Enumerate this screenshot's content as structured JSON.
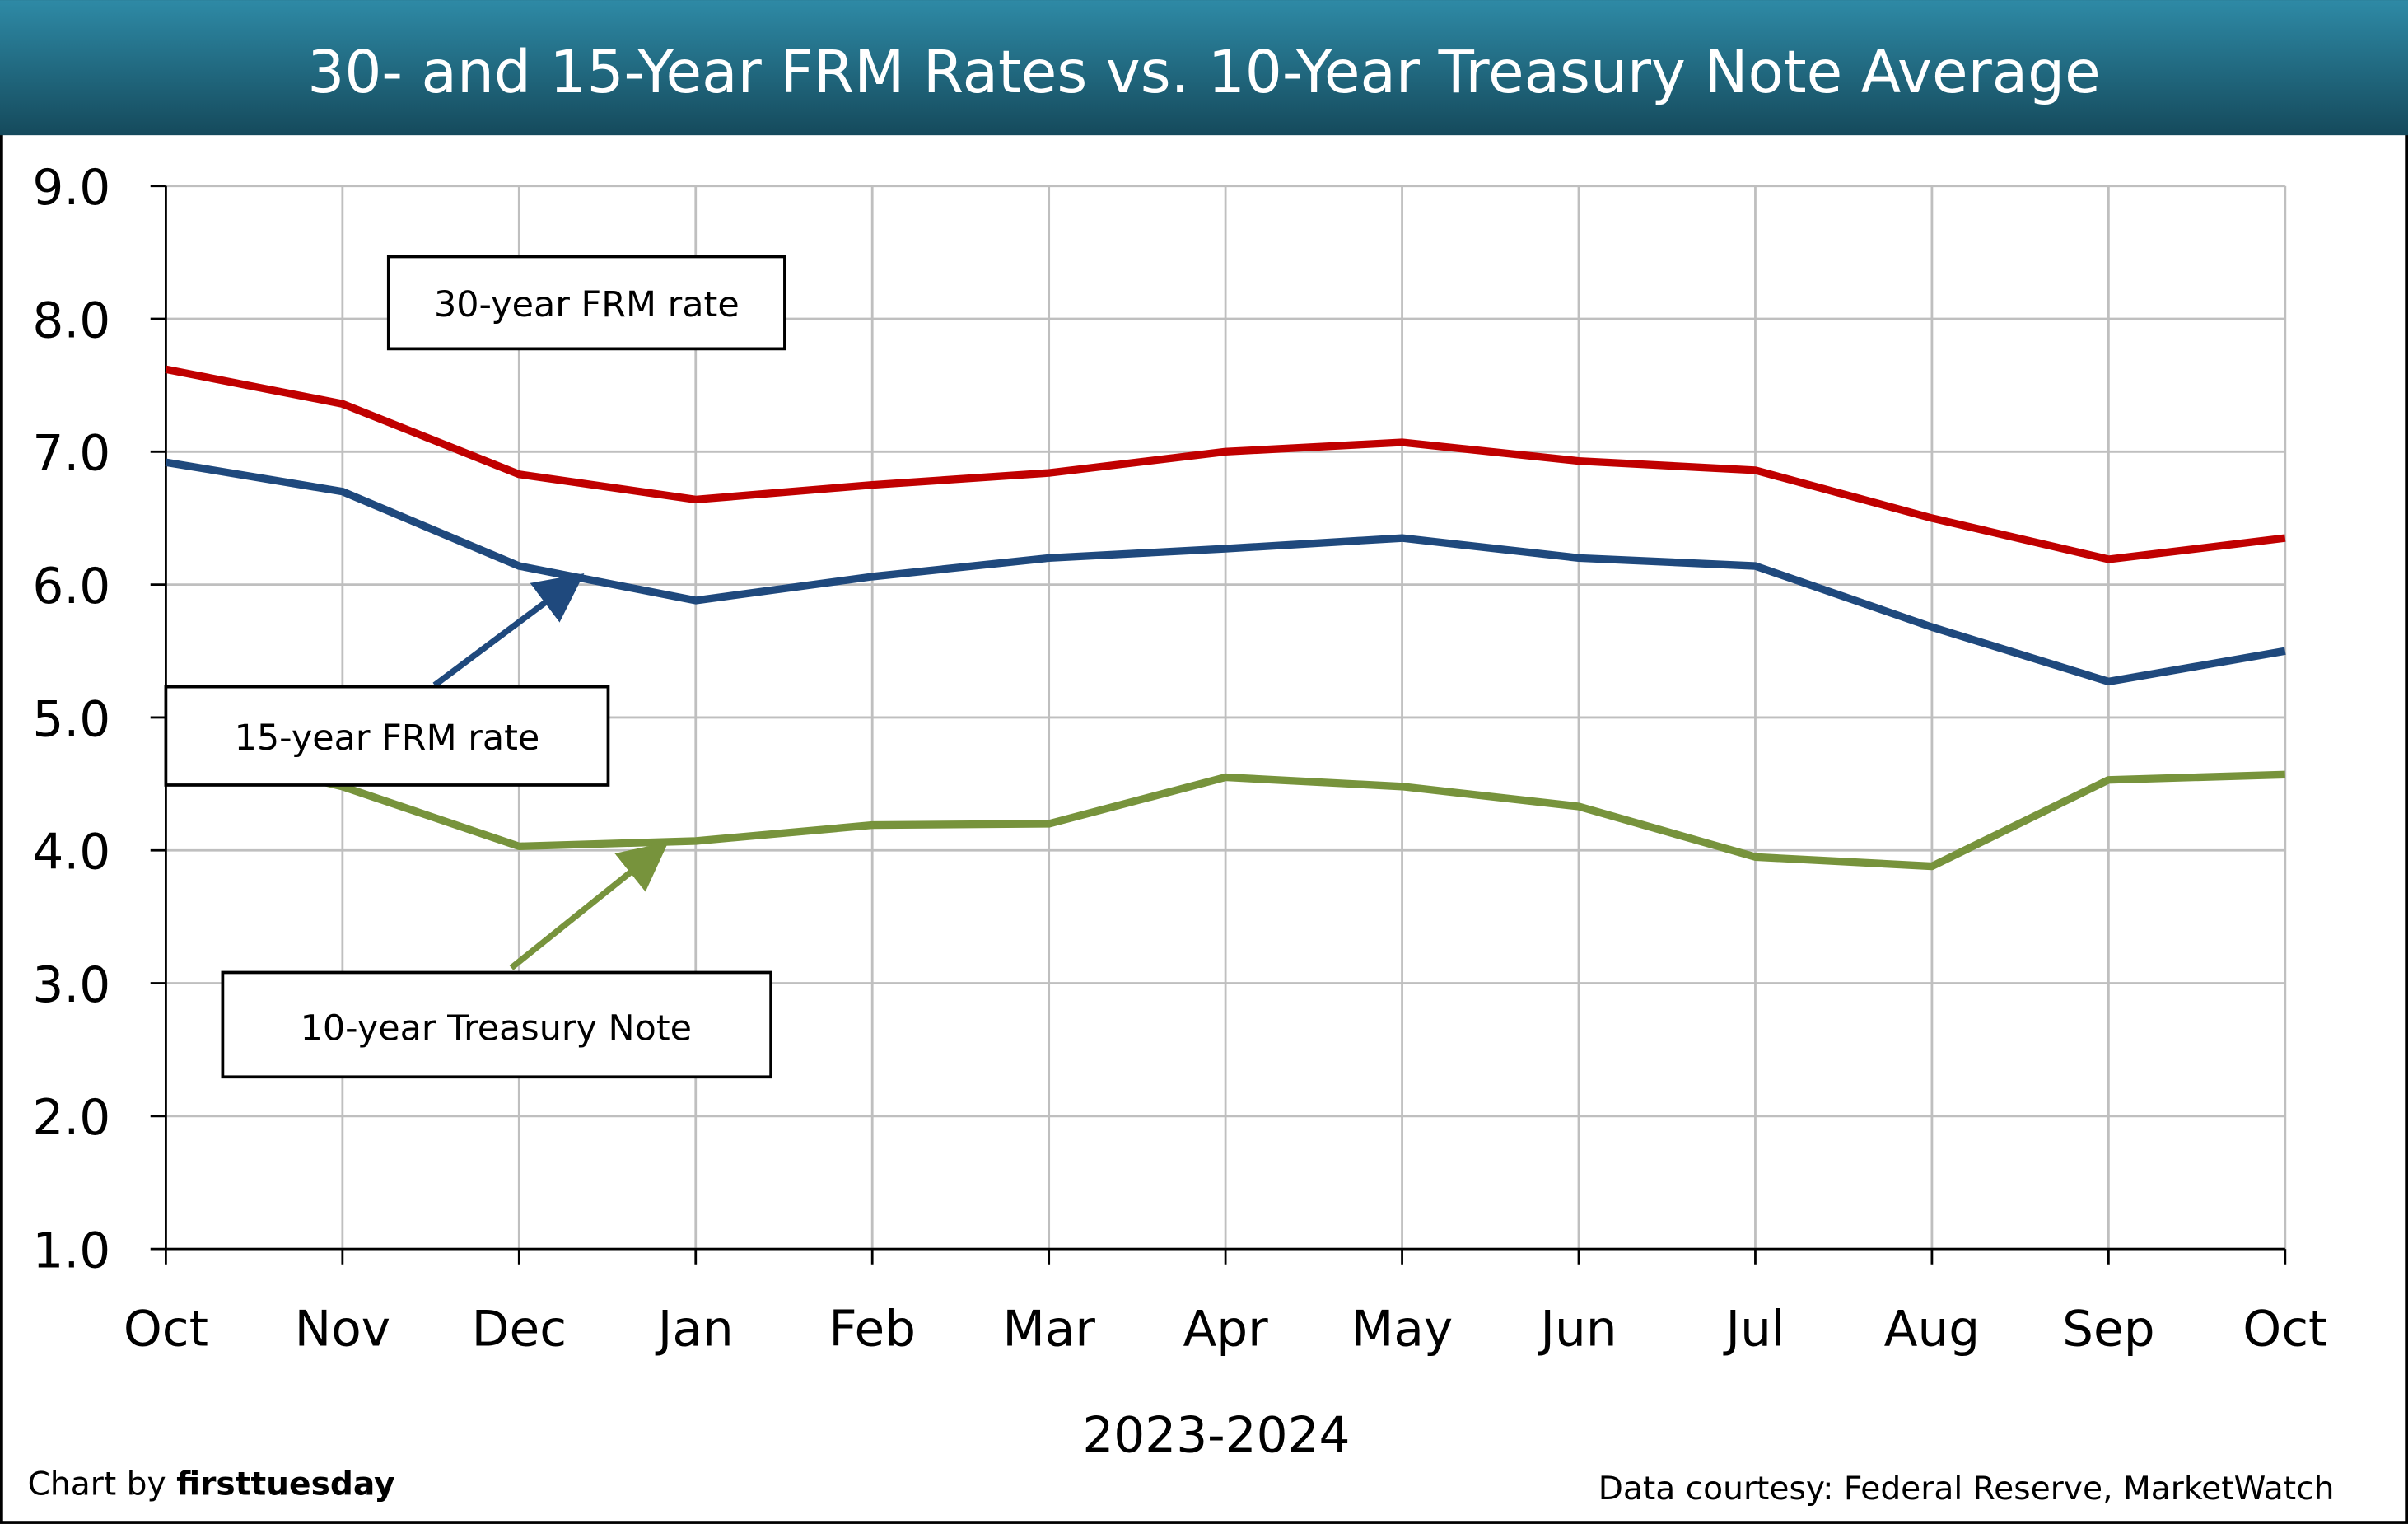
{
  "chart_data": {
    "type": "line",
    "title": "30- and 15-Year FRM Rates vs. 10-Year Treasury Note Average",
    "xlabel": "2023-2024",
    "ylabel": "",
    "categories": [
      "Oct",
      "Nov",
      "Dec",
      "Jan",
      "Feb",
      "Mar",
      "Apr",
      "May",
      "Jun",
      "Jul",
      "Aug",
      "Sep",
      "Oct"
    ],
    "ylim": [
      1.0,
      9.0
    ],
    "yticks": [
      "1.0",
      "2.0",
      "3.0",
      "4.0",
      "5.0",
      "6.0",
      "7.0",
      "8.0",
      "9.0"
    ],
    "grid": true,
    "series": [
      {
        "name": "30-year FRM rate",
        "color": "#c00000",
        "values": [
          7.62,
          7.36,
          6.83,
          6.64,
          6.75,
          6.84,
          7.0,
          7.07,
          6.93,
          6.86,
          6.5,
          6.19,
          6.35
        ]
      },
      {
        "name": "15-year FRM rate",
        "color": "#1f497d",
        "values": [
          6.92,
          6.7,
          6.14,
          5.88,
          6.06,
          6.2,
          6.27,
          6.35,
          6.2,
          6.14,
          5.68,
          5.27,
          5.5
        ]
      },
      {
        "name": "10-year Treasury Note",
        "color": "#77933c",
        "values": [
          4.8,
          4.48,
          4.03,
          4.07,
          4.19,
          4.2,
          4.55,
          4.48,
          4.33,
          3.95,
          3.88,
          4.53,
          4.57
        ]
      }
    ],
    "credit_left_prefix": "Chart by ",
    "credit_left_brand": "firsttuesday",
    "credit_right": "Data courtesy: Federal Reserve, MarketWatch"
  }
}
